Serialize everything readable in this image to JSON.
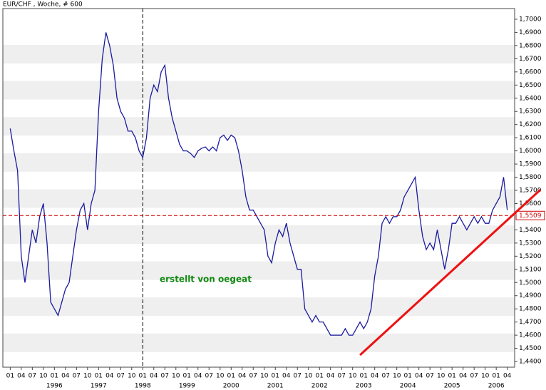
{
  "chart_data": {
    "type": "line",
    "title": "EUR/CHF , Woche, # 600",
    "annotation": "erstellt von oegeat",
    "x": [
      "1995-01",
      "1995-02",
      "1995-03",
      "1995-04",
      "1995-05",
      "1995-06",
      "1995-07",
      "1995-08",
      "1995-09",
      "1995-10",
      "1995-11",
      "1995-12",
      "1996-01",
      "1996-02",
      "1996-03",
      "1996-04",
      "1996-05",
      "1996-06",
      "1996-07",
      "1996-08",
      "1996-09",
      "1996-10",
      "1996-11",
      "1996-12",
      "1997-01",
      "1997-02",
      "1997-03",
      "1997-04",
      "1997-05",
      "1997-06",
      "1997-07",
      "1997-08",
      "1997-09",
      "1997-10",
      "1997-11",
      "1997-12",
      "1998-01",
      "1998-02",
      "1998-03",
      "1998-04",
      "1998-05",
      "1998-06",
      "1998-07",
      "1998-08",
      "1998-09",
      "1998-10",
      "1998-11",
      "1998-12",
      "1999-01",
      "1999-02",
      "1999-03",
      "1999-04",
      "1999-05",
      "1999-06",
      "1999-07",
      "1999-08",
      "1999-09",
      "1999-10",
      "1999-11",
      "1999-12",
      "2000-01",
      "2000-02",
      "2000-03",
      "2000-04",
      "2000-05",
      "2000-06",
      "2000-07",
      "2000-08",
      "2000-09",
      "2000-10",
      "2000-11",
      "2000-12",
      "2001-01",
      "2001-02",
      "2001-03",
      "2001-04",
      "2001-05",
      "2001-06",
      "2001-07",
      "2001-08",
      "2001-09",
      "2001-10",
      "2001-11",
      "2001-12",
      "2002-01",
      "2002-02",
      "2002-03",
      "2002-04",
      "2002-05",
      "2002-06",
      "2002-07",
      "2002-08",
      "2002-09",
      "2002-10",
      "2002-11",
      "2002-12",
      "2003-01",
      "2003-02",
      "2003-03",
      "2003-04",
      "2003-05",
      "2003-06",
      "2003-07",
      "2003-08",
      "2003-09",
      "2003-10",
      "2003-11",
      "2003-12",
      "2004-01",
      "2004-02",
      "2004-03",
      "2004-04",
      "2004-05",
      "2004-06",
      "2004-07",
      "2004-08",
      "2004-09",
      "2004-10",
      "2004-11",
      "2004-12",
      "2005-01",
      "2005-02",
      "2005-03",
      "2005-04",
      "2005-05",
      "2005-06",
      "2005-07",
      "2005-08",
      "2005-09",
      "2005-10",
      "2005-11",
      "2005-12",
      "2006-01",
      "2006-02",
      "2006-03",
      "2006-04"
    ],
    "series": [
      {
        "name": "EUR/CHF",
        "color": "#1a1aa0",
        "values": [
          1.617,
          1.6,
          1.585,
          1.52,
          1.5,
          1.52,
          1.54,
          1.53,
          1.55,
          1.56,
          1.53,
          1.485,
          1.48,
          1.475,
          1.485,
          1.495,
          1.5,
          1.52,
          1.54,
          1.555,
          1.56,
          1.54,
          1.56,
          1.57,
          1.63,
          1.67,
          1.69,
          1.68,
          1.665,
          1.64,
          1.63,
          1.625,
          1.615,
          1.615,
          1.61,
          1.6,
          1.595,
          1.61,
          1.64,
          1.65,
          1.645,
          1.66,
          1.665,
          1.64,
          1.625,
          1.615,
          1.605,
          1.6,
          1.6,
          1.598,
          1.595,
          1.6,
          1.602,
          1.603,
          1.6,
          1.603,
          1.6,
          1.61,
          1.612,
          1.608,
          1.612,
          1.61,
          1.6,
          1.585,
          1.565,
          1.555,
          1.555,
          1.55,
          1.545,
          1.54,
          1.52,
          1.515,
          1.53,
          1.54,
          1.535,
          1.545,
          1.53,
          1.52,
          1.51,
          1.51,
          1.48,
          1.475,
          1.47,
          1.475,
          1.47,
          1.47,
          1.465,
          1.46,
          1.46,
          1.46,
          1.46,
          1.465,
          1.46,
          1.46,
          1.465,
          1.47,
          1.465,
          1.47,
          1.48,
          1.505,
          1.52,
          1.545,
          1.55,
          1.545,
          1.55,
          1.55,
          1.555,
          1.565,
          1.57,
          1.575,
          1.58,
          1.555,
          1.535,
          1.525,
          1.53,
          1.525,
          1.54,
          1.525,
          1.51,
          1.525,
          1.545,
          1.545,
          1.55,
          1.545,
          1.54,
          1.545,
          1.55,
          1.545,
          1.55,
          1.545,
          1.545,
          1.555,
          1.56,
          1.565,
          1.58,
          1.555
        ]
      }
    ],
    "hline": {
      "value": 1.5509,
      "label": "1,5509",
      "color": "#cc0000"
    },
    "vline": {
      "x": "1998-01"
    },
    "trendline": {
      "x": [
        "2002-12",
        "2007-01"
      ],
      "values": [
        1.4449,
        1.5705
      ],
      "color": "#ee1111"
    },
    "xlim": [
      "1994-11",
      "2006-06"
    ],
    "ylim": [
      1.4357,
      1.7081
    ],
    "yticks": [
      {
        "value": 1.44,
        "label": "1,4400"
      },
      {
        "value": 1.45,
        "label": "1,4500"
      },
      {
        "value": 1.46,
        "label": "1,4600"
      },
      {
        "value": 1.47,
        "label": "1,4700"
      },
      {
        "value": 1.48,
        "label": "1,4800"
      },
      {
        "value": 1.49,
        "label": "1,4900"
      },
      {
        "value": 1.5,
        "label": "1,5000"
      },
      {
        "value": 1.51,
        "label": "1,5100"
      },
      {
        "value": 1.52,
        "label": "1,5200"
      },
      {
        "value": 1.53,
        "label": "1,5300"
      },
      {
        "value": 1.54,
        "label": "1,5400"
      },
      {
        "value": 1.56,
        "label": "1,5600"
      },
      {
        "value": 1.57,
        "label": "1,5700"
      },
      {
        "value": 1.58,
        "label": "1,5800"
      },
      {
        "value": 1.59,
        "label": "1,5900"
      },
      {
        "value": 1.6,
        "label": "1,6000"
      },
      {
        "value": 1.61,
        "label": "1,6100"
      },
      {
        "value": 1.62,
        "label": "1,6200"
      },
      {
        "value": 1.63,
        "label": "1,6300"
      },
      {
        "value": 1.64,
        "label": "1,6400"
      },
      {
        "value": 1.65,
        "label": "1,6500"
      },
      {
        "value": 1.66,
        "label": "1,6600"
      },
      {
        "value": 1.67,
        "label": "1,6700"
      },
      {
        "value": 1.68,
        "label": "1,6800"
      },
      {
        "value": 1.69,
        "label": "1,6900"
      },
      {
        "value": 1.7,
        "label": "1,7000"
      }
    ],
    "xticks": [
      {
        "value": "1995-01",
        "label": "01"
      },
      {
        "value": "1995-04",
        "label": "04"
      },
      {
        "value": "1995-07",
        "label": "07"
      },
      {
        "value": "1995-10",
        "label": "10"
      },
      {
        "value": "1996-01",
        "label": "01"
      },
      {
        "value": "1996-04",
        "label": "04"
      },
      {
        "value": "1996-07",
        "label": "07"
      },
      {
        "value": "1996-10",
        "label": "10"
      },
      {
        "value": "1997-01",
        "label": "01"
      },
      {
        "value": "1997-04",
        "label": "04"
      },
      {
        "value": "1997-07",
        "label": "07"
      },
      {
        "value": "1997-10",
        "label": "10"
      },
      {
        "value": "1998-01",
        "label": "01"
      },
      {
        "value": "1998-04",
        "label": "04"
      },
      {
        "value": "1998-07",
        "label": "07"
      },
      {
        "value": "1998-10",
        "label": "10"
      },
      {
        "value": "1999-01",
        "label": "01"
      },
      {
        "value": "1999-04",
        "label": "04"
      },
      {
        "value": "1999-07",
        "label": "07"
      },
      {
        "value": "1999-10",
        "label": "10"
      },
      {
        "value": "2000-01",
        "label": "01"
      },
      {
        "value": "2000-04",
        "label": "04"
      },
      {
        "value": "2000-07",
        "label": "07"
      },
      {
        "value": "2000-10",
        "label": "10"
      },
      {
        "value": "2001-01",
        "label": "01"
      },
      {
        "value": "2001-04",
        "label": "04"
      },
      {
        "value": "2001-07",
        "label": "07"
      },
      {
        "value": "2001-10",
        "label": "10"
      },
      {
        "value": "2002-01",
        "label": "01"
      },
      {
        "value": "2002-04",
        "label": "04"
      },
      {
        "value": "2002-07",
        "label": "07"
      },
      {
        "value": "2002-10",
        "label": "10"
      },
      {
        "value": "2003-01",
        "label": "01"
      },
      {
        "value": "2003-04",
        "label": "04"
      },
      {
        "value": "2003-07",
        "label": "07"
      },
      {
        "value": "2003-10",
        "label": "10"
      },
      {
        "value": "2004-01",
        "label": "01"
      },
      {
        "value": "2004-04",
        "label": "04"
      },
      {
        "value": "2004-07",
        "label": "07"
      },
      {
        "value": "2004-10",
        "label": "10"
      },
      {
        "value": "2005-01",
        "label": "01"
      },
      {
        "value": "2005-04",
        "label": "04"
      },
      {
        "value": "2005-07",
        "label": "07"
      },
      {
        "value": "2005-10",
        "label": "10"
      },
      {
        "value": "2006-01",
        "label": "01"
      },
      {
        "value": "2006-04",
        "label": "04"
      }
    ],
    "year_labels": [
      {
        "value": "1996-01",
        "label": "1996"
      },
      {
        "value": "1997-01",
        "label": "1997"
      },
      {
        "value": "1998-01",
        "label": "1998"
      },
      {
        "value": "1999-01",
        "label": "1999"
      },
      {
        "value": "2000-01",
        "label": "2000"
      },
      {
        "value": "2001-01",
        "label": "2001"
      },
      {
        "value": "2002-01",
        "label": "2002"
      },
      {
        "value": "2003-01",
        "label": "2003"
      },
      {
        "value": "2004-01",
        "label": "2004"
      },
      {
        "value": "2005-01",
        "label": "2005"
      },
      {
        "value": "2006-01",
        "label": "2006"
      }
    ]
  }
}
